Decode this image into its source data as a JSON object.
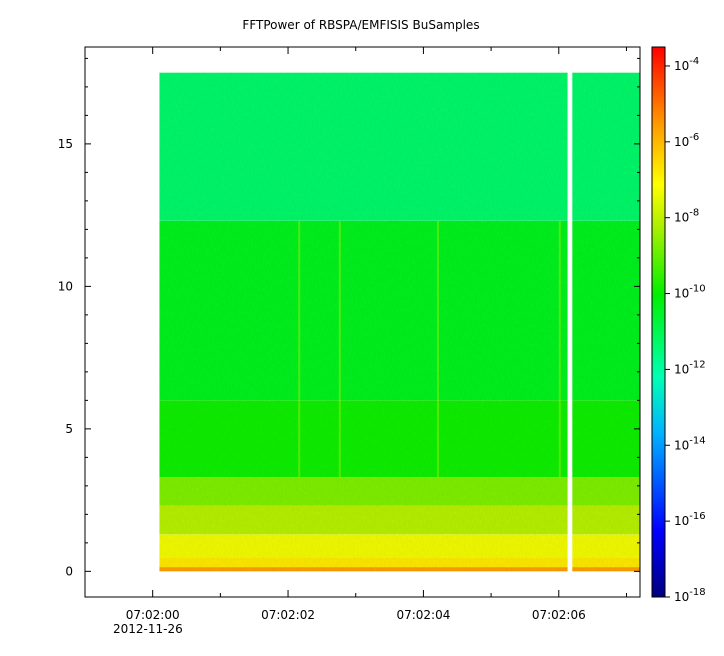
{
  "chart_data": {
    "type": "heatmap",
    "title": "FFTPower of RBSPA/EMFISIS  BuSamples",
    "xlabel": "",
    "ylabel": "",
    "x_range": [
      "07:01:59.0",
      "07:02:07.2"
    ],
    "x_data_range": [
      "07:02:00.1",
      "07:02:07.2"
    ],
    "x_ticks": [
      "07:02:00",
      "07:02:02",
      "07:02:04",
      "07:02:06"
    ],
    "x_date_label": "2012-11-26",
    "ylim": [
      -0.9,
      18.4
    ],
    "y_data_range": [
      0,
      17.5
    ],
    "y_ticks": [
      "0",
      "5",
      "10",
      "15"
    ],
    "data_gap": {
      "start": "07:02:06.13",
      "end": "07:02:06.20"
    },
    "bands": [
      {
        "y_from": 0.0,
        "y_to": 0.15,
        "log10_power": -5.6
      },
      {
        "y_from": 0.15,
        "y_to": 0.5,
        "log10_power": -6.8
      },
      {
        "y_from": 0.5,
        "y_to": 1.3,
        "log10_power": -7.3
      },
      {
        "y_from": 1.3,
        "y_to": 2.3,
        "log10_power": -8.1
      },
      {
        "y_from": 2.3,
        "y_to": 3.3,
        "log10_power": -8.7
      },
      {
        "y_from": 3.3,
        "y_to": 6.0,
        "log10_power": -9.9
      },
      {
        "y_from": 6.0,
        "y_to": 12.3,
        "log10_power": -10.4
      },
      {
        "y_from": 12.3,
        "y_to": 17.5,
        "log10_power": -11.3
      }
    ],
    "vertical_streaks": [
      "07:02:02.15",
      "07:02:02.75",
      "07:02:04.2",
      "07:02:06.0"
    ],
    "colorbar": {
      "scale": "log",
      "range": [
        -18,
        -3.5
      ],
      "colormap": "rainbow",
      "ticks": [
        {
          "base": "10",
          "exp": "-4",
          "value": -4
        },
        {
          "base": "10",
          "exp": "-6",
          "value": -6
        },
        {
          "base": "10",
          "exp": "-8",
          "value": -8
        },
        {
          "base": "10",
          "exp": "-10",
          "value": -10
        },
        {
          "base": "10",
          "exp": "-12",
          "value": -12
        },
        {
          "base": "10",
          "exp": "-14",
          "value": -14
        },
        {
          "base": "10",
          "exp": "-16",
          "value": -16
        },
        {
          "base": "10",
          "exp": "-18",
          "value": -18
        }
      ]
    }
  }
}
